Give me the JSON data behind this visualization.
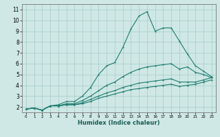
{
  "xlabel": "Humidex (Indice chaleur)",
  "bg_color": "#cfe8e5",
  "line_color": "#1a7a6e",
  "grid_color": "#aacfcb",
  "xlim": [
    -0.5,
    23.5
  ],
  "ylim": [
    1.5,
    11.5
  ],
  "xticks": [
    0,
    1,
    2,
    3,
    4,
    5,
    6,
    7,
    8,
    9,
    10,
    11,
    12,
    13,
    14,
    15,
    16,
    17,
    18,
    19,
    20,
    21,
    22,
    23
  ],
  "yticks": [
    2,
    3,
    4,
    5,
    6,
    7,
    8,
    9,
    10,
    11
  ],
  "series": [
    {
      "x": [
        0,
        1,
        2,
        3,
        4,
        5,
        6,
        7,
        8,
        9,
        10,
        11,
        12,
        13,
        14,
        15,
        16,
        17,
        18,
        19,
        20,
        21,
        22,
        23
      ],
      "y": [
        1.8,
        1.9,
        1.7,
        2.1,
        2.2,
        2.5,
        2.5,
        3.0,
        3.8,
        5.0,
        5.8,
        6.1,
        7.5,
        9.2,
        10.4,
        10.8,
        9.0,
        9.3,
        9.3,
        8.1,
        6.9,
        5.8,
        5.3,
        4.8
      ]
    },
    {
      "x": [
        0,
        1,
        2,
        3,
        4,
        5,
        6,
        7,
        8,
        9,
        10,
        11,
        12,
        13,
        14,
        15,
        16,
        17,
        18,
        19,
        20,
        21,
        22,
        23
      ],
      "y": [
        1.8,
        1.9,
        1.7,
        2.1,
        2.1,
        2.3,
        2.3,
        2.6,
        3.0,
        3.5,
        4.0,
        4.3,
        4.8,
        5.2,
        5.5,
        5.7,
        5.8,
        5.9,
        6.0,
        5.5,
        5.7,
        5.2,
        5.0,
        4.7
      ]
    },
    {
      "x": [
        0,
        1,
        2,
        3,
        4,
        5,
        6,
        7,
        8,
        9,
        10,
        11,
        12,
        13,
        14,
        15,
        16,
        17,
        18,
        19,
        20,
        21,
        22,
        23
      ],
      "y": [
        1.8,
        1.9,
        1.7,
        2.1,
        2.1,
        2.2,
        2.2,
        2.4,
        2.7,
        3.0,
        3.3,
        3.5,
        3.8,
        4.0,
        4.2,
        4.3,
        4.4,
        4.5,
        4.6,
        4.3,
        4.3,
        4.3,
        4.5,
        4.7
      ]
    },
    {
      "x": [
        0,
        1,
        2,
        3,
        4,
        5,
        6,
        7,
        8,
        9,
        10,
        11,
        12,
        13,
        14,
        15,
        16,
        17,
        18,
        19,
        20,
        21,
        22,
        23
      ],
      "y": [
        1.8,
        1.9,
        1.7,
        2.1,
        2.1,
        2.2,
        2.2,
        2.3,
        2.5,
        2.8,
        3.0,
        3.2,
        3.4,
        3.6,
        3.7,
        3.8,
        3.9,
        4.0,
        4.1,
        3.9,
        4.0,
        4.1,
        4.3,
        4.5
      ]
    }
  ]
}
